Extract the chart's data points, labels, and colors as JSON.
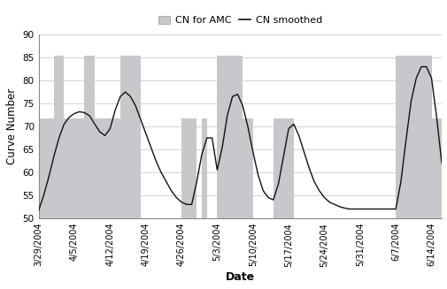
{
  "title": "",
  "xlabel": "Date",
  "ylabel": "Curve Number",
  "ylim": [
    50,
    90
  ],
  "yticks": [
    50,
    55,
    60,
    65,
    70,
    75,
    80,
    85,
    90
  ],
  "bar_color": "#c8c8cc",
  "bar_edge_color": "#aaaaaa",
  "line_color": "#111111",
  "background_color": "#ffffff",
  "legend_bar_label": "CN for AMC",
  "legend_line_label": "CN smoothed",
  "bar_segments": [
    {
      "start": "3/29/2004",
      "end": "4/1/2004",
      "value": 71.8
    },
    {
      "start": "4/1/2004",
      "end": "4/3/2004",
      "value": 85.4
    },
    {
      "start": "4/3/2004",
      "end": "4/7/2004",
      "value": 71.8
    },
    {
      "start": "4/7/2004",
      "end": "4/9/2004",
      "value": 85.4
    },
    {
      "start": "4/9/2004",
      "end": "4/14/2004",
      "value": 71.8
    },
    {
      "start": "4/14/2004",
      "end": "4/18/2004",
      "value": 85.4
    },
    {
      "start": "4/26/2004",
      "end": "4/29/2004",
      "value": 71.8
    },
    {
      "start": "4/30/2004",
      "end": "5/1/2004",
      "value": 71.8
    },
    {
      "start": "5/3/2004",
      "end": "5/5/2004",
      "value": 85.4
    },
    {
      "start": "5/5/2004",
      "end": "5/8/2004",
      "value": 85.4
    },
    {
      "start": "5/8/2004",
      "end": "5/10/2004",
      "value": 71.8
    },
    {
      "start": "5/14/2004",
      "end": "5/18/2004",
      "value": 71.8
    },
    {
      "start": "6/7/2004",
      "end": "6/10/2004",
      "value": 85.4
    },
    {
      "start": "6/10/2004",
      "end": "6/14/2004",
      "value": 85.4
    },
    {
      "start": "6/14/2004",
      "end": "6/16/2004",
      "value": 71.8
    }
  ],
  "smooth_data": [
    {
      "date": "3/29/2004",
      "value": 51.6
    },
    {
      "date": "3/30/2004",
      "value": 55.0
    },
    {
      "date": "3/31/2004",
      "value": 59.0
    },
    {
      "date": "4/1/2004",
      "value": 63.5
    },
    {
      "date": "4/2/2004",
      "value": 67.5
    },
    {
      "date": "4/3/2004",
      "value": 70.5
    },
    {
      "date": "4/4/2004",
      "value": 72.0
    },
    {
      "date": "4/5/2004",
      "value": 72.8
    },
    {
      "date": "4/6/2004",
      "value": 73.2
    },
    {
      "date": "4/7/2004",
      "value": 73.0
    },
    {
      "date": "4/8/2004",
      "value": 72.3
    },
    {
      "date": "4/9/2004",
      "value": 70.5
    },
    {
      "date": "4/10/2004",
      "value": 68.8
    },
    {
      "date": "4/11/2004",
      "value": 68.0
    },
    {
      "date": "4/12/2004",
      "value": 69.5
    },
    {
      "date": "4/13/2004",
      "value": 73.5
    },
    {
      "date": "4/14/2004",
      "value": 76.5
    },
    {
      "date": "4/15/2004",
      "value": 77.5
    },
    {
      "date": "4/16/2004",
      "value": 76.5
    },
    {
      "date": "4/17/2004",
      "value": 74.5
    },
    {
      "date": "4/18/2004",
      "value": 71.5
    },
    {
      "date": "4/19/2004",
      "value": 68.5
    },
    {
      "date": "4/20/2004",
      "value": 65.5
    },
    {
      "date": "4/21/2004",
      "value": 62.5
    },
    {
      "date": "4/22/2004",
      "value": 60.0
    },
    {
      "date": "4/23/2004",
      "value": 58.0
    },
    {
      "date": "4/24/2004",
      "value": 56.0
    },
    {
      "date": "4/25/2004",
      "value": 54.5
    },
    {
      "date": "4/26/2004",
      "value": 53.5
    },
    {
      "date": "4/27/2004",
      "value": 53.0
    },
    {
      "date": "4/28/2004",
      "value": 53.0
    },
    {
      "date": "4/29/2004",
      "value": 58.0
    },
    {
      "date": "4/30/2004",
      "value": 64.0
    },
    {
      "date": "5/1/2004",
      "value": 67.5
    },
    {
      "date": "5/2/2004",
      "value": 67.5
    },
    {
      "date": "5/3/2004",
      "value": 60.5
    },
    {
      "date": "5/4/2004",
      "value": 65.5
    },
    {
      "date": "5/5/2004",
      "value": 72.5
    },
    {
      "date": "5/6/2004",
      "value": 76.5
    },
    {
      "date": "5/7/2004",
      "value": 77.0
    },
    {
      "date": "5/8/2004",
      "value": 74.5
    },
    {
      "date": "5/9/2004",
      "value": 70.0
    },
    {
      "date": "5/10/2004",
      "value": 64.5
    },
    {
      "date": "5/11/2004",
      "value": 59.5
    },
    {
      "date": "5/12/2004",
      "value": 56.0
    },
    {
      "date": "5/13/2004",
      "value": 54.5
    },
    {
      "date": "5/14/2004",
      "value": 54.0
    },
    {
      "date": "5/15/2004",
      "value": 57.5
    },
    {
      "date": "5/16/2004",
      "value": 63.5
    },
    {
      "date": "5/17/2004",
      "value": 69.5
    },
    {
      "date": "5/18/2004",
      "value": 70.5
    },
    {
      "date": "5/19/2004",
      "value": 68.0
    },
    {
      "date": "5/20/2004",
      "value": 64.5
    },
    {
      "date": "5/21/2004",
      "value": 61.0
    },
    {
      "date": "5/22/2004",
      "value": 58.0
    },
    {
      "date": "5/23/2004",
      "value": 56.0
    },
    {
      "date": "5/24/2004",
      "value": 54.5
    },
    {
      "date": "5/25/2004",
      "value": 53.5
    },
    {
      "date": "5/26/2004",
      "value": 53.0
    },
    {
      "date": "5/27/2004",
      "value": 52.5
    },
    {
      "date": "5/28/2004",
      "value": 52.2
    },
    {
      "date": "5/29/2004",
      "value": 52.0
    },
    {
      "date": "5/30/2004",
      "value": 52.0
    },
    {
      "date": "5/31/2004",
      "value": 52.0
    },
    {
      "date": "6/1/2004",
      "value": 52.0
    },
    {
      "date": "6/2/2004",
      "value": 52.0
    },
    {
      "date": "6/3/2004",
      "value": 52.0
    },
    {
      "date": "6/4/2004",
      "value": 52.0
    },
    {
      "date": "6/5/2004",
      "value": 52.0
    },
    {
      "date": "6/6/2004",
      "value": 52.0
    },
    {
      "date": "6/7/2004",
      "value": 52.0
    },
    {
      "date": "6/8/2004",
      "value": 58.0
    },
    {
      "date": "6/9/2004",
      "value": 67.0
    },
    {
      "date": "6/10/2004",
      "value": 75.5
    },
    {
      "date": "6/11/2004",
      "value": 80.5
    },
    {
      "date": "6/12/2004",
      "value": 83.0
    },
    {
      "date": "6/13/2004",
      "value": 83.0
    },
    {
      "date": "6/14/2004",
      "value": 80.5
    },
    {
      "date": "6/15/2004",
      "value": 72.0
    },
    {
      "date": "6/16/2004",
      "value": 62.0
    }
  ],
  "xtick_dates": [
    "3/29/2004",
    "4/5/2004",
    "4/12/2004",
    "4/19/2004",
    "4/26/2004",
    "5/3/2004",
    "5/10/2004",
    "5/17/2004",
    "5/24/2004",
    "5/31/2004",
    "6/7/2004",
    "6/14/2004"
  ],
  "xmin": "3/29/2004",
  "xmax": "6/16/2004"
}
